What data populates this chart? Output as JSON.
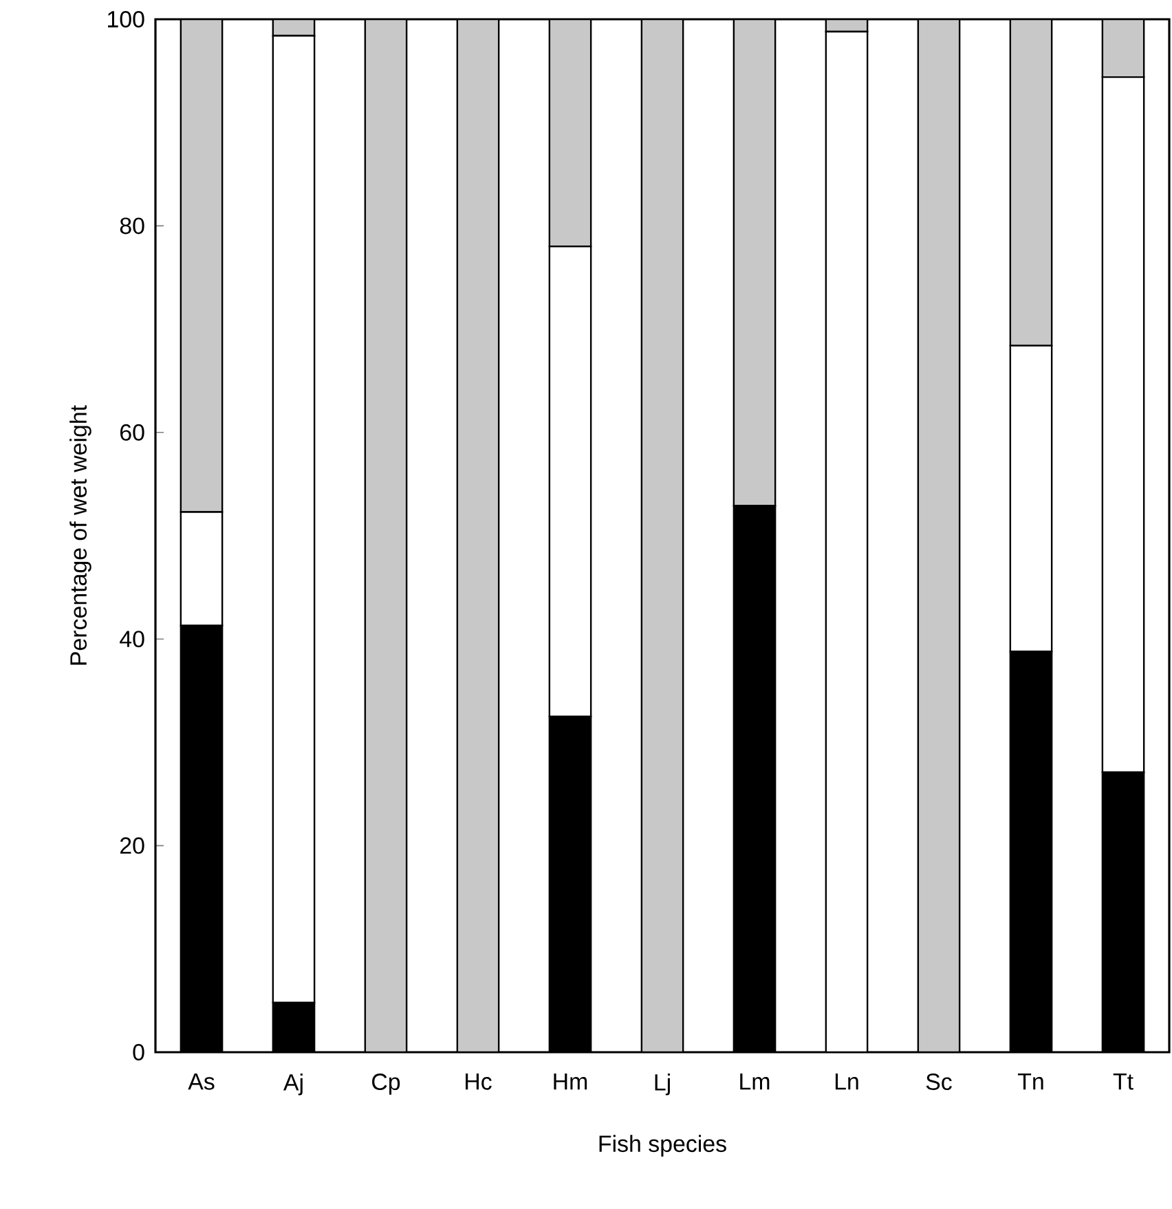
{
  "chart_data": {
    "type": "bar",
    "stacked": true,
    "xlabel": "Fish species",
    "ylabel": "Percentage of wet weight",
    "categories": [
      "As",
      "Aj",
      "Cp",
      "Hc",
      "Hm",
      "Lj",
      "Lm",
      "Ln",
      "Sc",
      "Tn",
      "Tt"
    ],
    "series": [
      {
        "color": "#000000",
        "values": [
          41.3,
          4.8,
          0,
          0,
          32.5,
          0,
          52.9,
          0,
          0,
          38.8,
          27.1
        ]
      },
      {
        "color": "#ffffff",
        "values": [
          11.0,
          93.6,
          0,
          0,
          45.5,
          0,
          0,
          98.8,
          0,
          29.6,
          67.3
        ]
      },
      {
        "color": "#c8c8c8",
        "values": [
          47.7,
          1.6,
          100,
          100,
          22.0,
          100,
          47.1,
          1.2,
          100,
          31.6,
          5.6
        ]
      }
    ],
    "ylim": [
      0,
      100
    ],
    "yticks": [
      0,
      20,
      40,
      60,
      80,
      100
    ]
  }
}
